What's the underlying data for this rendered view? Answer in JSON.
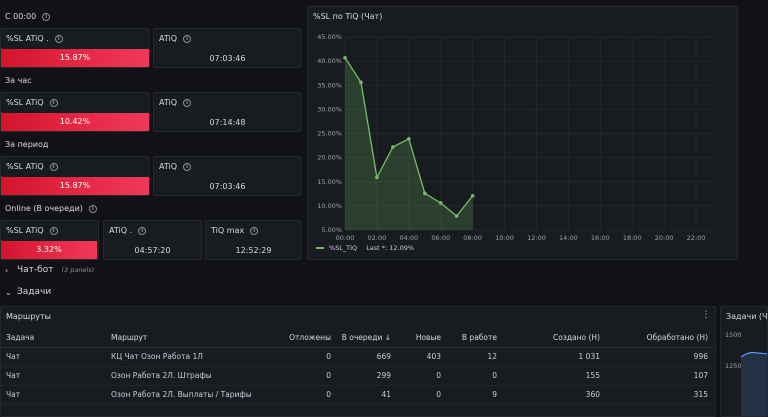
{
  "rows": {
    "since_midnight": "С 00:00",
    "per_hour": "За час",
    "per_period": "За период",
    "online": "Online (В очереди)"
  },
  "stats": {
    "r1_sl_title": "%SL ATiQ .",
    "r1_sl_value": "15.87%",
    "r1_atiq_title": "ATiQ",
    "r1_atiq_value": "07:03:46",
    "r2_sl_title": "%SL ATiQ",
    "r2_sl_value": "10.42%",
    "r2_atiq_title": "ATiQ",
    "r2_atiq_value": "07:14:48",
    "r3_sl_title": "%SL ATiQ",
    "r3_sl_value": "15.87%",
    "r3_atiq_title": "ATiQ",
    "r3_atiq_value": "07:03:46",
    "r4_sl_title": "%SL ATiQ",
    "r4_sl_value": "3.32%",
    "r4_atiq_title": "ATiQ .",
    "r4_atiq_value": "04:57:20",
    "r4_tiq_title": "TiQ max",
    "r4_tiq_value": "12:52:29"
  },
  "chart_panel": {
    "title": "%SL по TiQ (Чат)",
    "legend_name": "%SL_TIQ",
    "legend_last": "Last *: 12.09%",
    "line_color": "#73bf69"
  },
  "chart_data": {
    "type": "area",
    "y_ticks": [
      "45.00%",
      "40.00%",
      "35.00%",
      "30.00%",
      "25.00%",
      "20.00%",
      "15.00%",
      "10.00%",
      "5.00%"
    ],
    "ylim": [
      5,
      45
    ],
    "x_ticks": [
      "00:00",
      "02:00",
      "04:00",
      "06:00",
      "08:00",
      "10:00",
      "12:00",
      "14:00",
      "16:00",
      "18:00",
      "20:00",
      "22:00"
    ],
    "xlim": [
      0,
      23
    ],
    "series": [
      {
        "name": "%SL_TIQ",
        "x": [
          0,
          1,
          2,
          3,
          4,
          5,
          6,
          7,
          8
        ],
        "values": [
          40.7,
          35.6,
          15.9,
          22.2,
          23.9,
          12.6,
          10.6,
          7.9,
          12.1
        ]
      }
    ]
  },
  "sections": {
    "chat_bot": "Чат-бот",
    "chat_bot_panels": "(3 panels)",
    "tasks": "Задачи"
  },
  "routes_panel": {
    "title": "Маршруты",
    "columns": [
      "Задача",
      "Маршрут",
      "Отложены",
      "В очереди ↓",
      "Новые",
      "В работе",
      "Создано (Н)",
      "Обработано (Н)"
    ],
    "rows": [
      [
        "Чат",
        "КЦ Чат Озон Работа 1Л",
        "0",
        "669",
        "403",
        "12",
        "1 031",
        "996"
      ],
      [
        "Чат",
        "Озон Работа 2Л. Штрафы",
        "0",
        "299",
        "0",
        "0",
        "155",
        "107"
      ],
      [
        "Чат",
        "Озон Работа 2Л. Выплаты / Тарифы",
        "0",
        "41",
        "0",
        "9",
        "360",
        "315"
      ]
    ]
  },
  "tasks_panel": {
    "title": "Задачи (Ча",
    "tick_top": "1500",
    "tick_bottom": "1250"
  }
}
